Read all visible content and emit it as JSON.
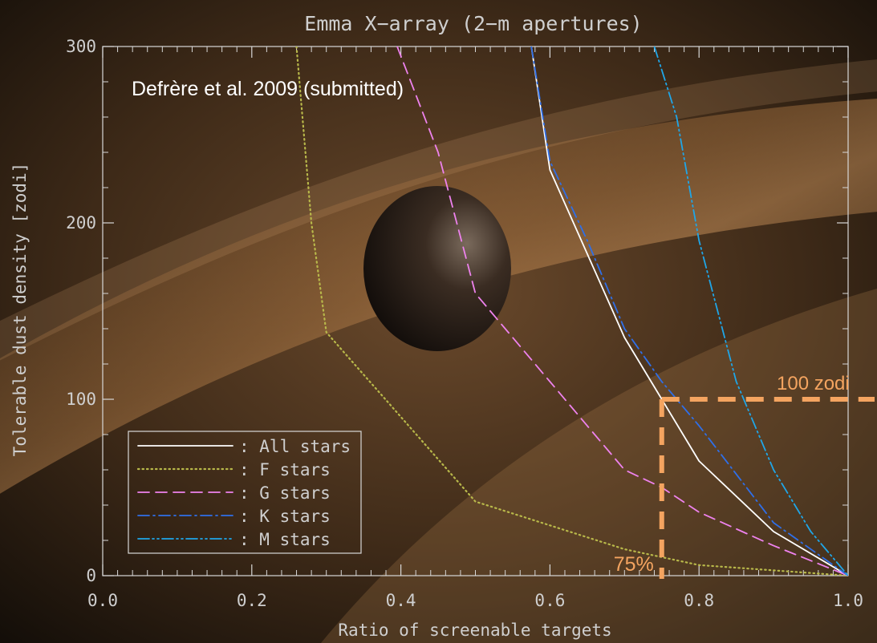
{
  "chart_data": {
    "type": "line",
    "title": "Emma X−array (2−m apertures)",
    "xlabel": "Ratio of screenable targets",
    "ylabel": "Tolerable dust density [zodi]",
    "xlim": [
      0.0,
      1.0
    ],
    "ylim": [
      0,
      300
    ],
    "x_ticks": [
      0.0,
      0.2,
      0.4,
      0.6,
      0.8,
      1.0
    ],
    "x_tick_labels": [
      "0.0",
      "0.2",
      "0.4",
      "0.6",
      "0.8",
      "1.0"
    ],
    "y_ticks": [
      0,
      100,
      200,
      300
    ],
    "y_tick_labels": [
      "0",
      "100",
      "200",
      "300"
    ],
    "grid": false,
    "legend_position": "bottom-left",
    "series": [
      {
        "name": ": All stars",
        "color": "#ffffff",
        "style": "solid",
        "points": [
          [
            0.575,
            300
          ],
          [
            0.6,
            230
          ],
          [
            0.7,
            135
          ],
          [
            0.75,
            100
          ],
          [
            0.8,
            65
          ],
          [
            0.9,
            25
          ],
          [
            1.0,
            0
          ]
        ]
      },
      {
        "name": ": F stars",
        "color": "#b8b84a",
        "style": "dotted",
        "points": [
          [
            0.26,
            300
          ],
          [
            0.28,
            200
          ],
          [
            0.3,
            138
          ],
          [
            0.5,
            42
          ],
          [
            0.7,
            15
          ],
          [
            0.8,
            6
          ],
          [
            0.9,
            3
          ],
          [
            1.0,
            0
          ]
        ]
      },
      {
        "name": ": G stars",
        "color": "#ee82ee",
        "style": "dashed",
        "points": [
          [
            0.395,
            300
          ],
          [
            0.45,
            240
          ],
          [
            0.5,
            160
          ],
          [
            0.6,
            110
          ],
          [
            0.7,
            60
          ],
          [
            0.75,
            50
          ],
          [
            0.8,
            36
          ],
          [
            0.9,
            17
          ],
          [
            1.0,
            0
          ]
        ]
      },
      {
        "name": ": K stars",
        "color": "#2f6fe8",
        "style": "dash-dot",
        "points": [
          [
            0.575,
            300
          ],
          [
            0.6,
            235
          ],
          [
            0.65,
            190
          ],
          [
            0.7,
            140
          ],
          [
            0.75,
            110
          ],
          [
            0.8,
            85
          ],
          [
            0.9,
            30
          ],
          [
            1.0,
            0
          ]
        ]
      },
      {
        "name": ": M stars",
        "color": "#1fa6e8",
        "style": "dash-dot-dot",
        "points": [
          [
            0.74,
            300
          ],
          [
            0.77,
            260
          ],
          [
            0.8,
            190
          ],
          [
            0.85,
            110
          ],
          [
            0.9,
            60
          ],
          [
            0.95,
            25
          ],
          [
            1.0,
            0
          ]
        ]
      }
    ],
    "annotations": {
      "citation": "Defrère et al. 2009 (submitted)",
      "threshold_label": "100 zodi",
      "threshold_value": 100,
      "ratio_label": "75%",
      "ratio_value": 0.75,
      "highlight_color": "#f4a460"
    }
  }
}
